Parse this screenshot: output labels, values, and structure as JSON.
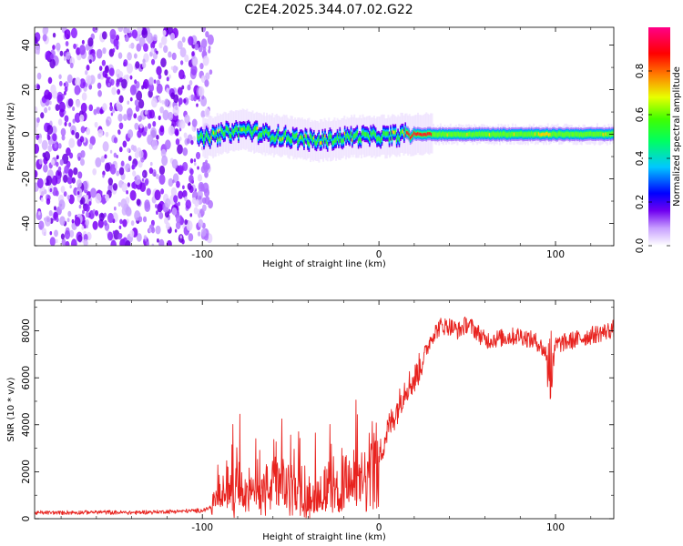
{
  "figure_title": "C2E4.2025.344.07.02.G22",
  "chart_data": [
    {
      "type": "heatmap",
      "title": "",
      "xlabel": "Height of straight line (km)",
      "ylabel": "Frequency (Hz)",
      "xlim": [
        -195,
        133
      ],
      "ylim": [
        -50,
        48
      ],
      "xticks": [
        -100,
        0,
        100
      ],
      "xtick_labels": [
        "-100",
        "0",
        "100"
      ],
      "yticks": [
        -40,
        -20,
        0,
        20,
        40
      ],
      "ytick_labels": [
        "-40",
        "-20",
        "0",
        "20",
        "40"
      ],
      "noise_region_km": [
        -195,
        -98
      ],
      "ridge": {
        "description": "tracked signal near 0 Hz",
        "x_km": [
          -105,
          -95,
          -85,
          -75,
          -65,
          -55,
          -45,
          -35,
          -25,
          -15,
          -5,
          5,
          15,
          25,
          50,
          75,
          95,
          133
        ],
        "freq_hz": [
          -3,
          -1,
          1,
          2,
          0,
          -1,
          -2,
          -3,
          -2,
          -1,
          -1,
          -1,
          0,
          0,
          0,
          0,
          0,
          0
        ]
      },
      "colorbar": {
        "label": "Normalized spectral amplitude",
        "range": [
          0,
          1
        ],
        "ticks": [
          0.0,
          0.2,
          0.4,
          0.6,
          0.8
        ],
        "tick_labels": [
          "0.0",
          "0.2",
          "0.4",
          "0.6",
          "0.8"
        ]
      }
    },
    {
      "type": "line",
      "title": "",
      "xlabel": "Height of straight line (km)",
      "ylabel": "SNR (10 * v/v)",
      "xlim": [
        -195,
        133
      ],
      "ylim": [
        0,
        9300
      ],
      "xticks": [
        -100,
        0,
        100
      ],
      "xtick_labels": [
        "-100",
        "0",
        "100"
      ],
      "yticks": [
        0,
        2000,
        4000,
        6000,
        8000
      ],
      "ytick_labels": [
        "0",
        "2000",
        "4000",
        "6000",
        "8000"
      ],
      "series": [
        {
          "name": "SNR",
          "color": "#e8231f",
          "x": [
            -195,
            -180,
            -160,
            -140,
            -120,
            -100,
            -95,
            -90,
            -80,
            -70,
            -60,
            -50,
            -40,
            -30,
            -25,
            -20,
            -15,
            -10,
            -5,
            0,
            5,
            10,
            15,
            20,
            25,
            30,
            35,
            40,
            45,
            50,
            55,
            60,
            70,
            80,
            90,
            95,
            97,
            100,
            110,
            120,
            130,
            133
          ],
          "y": [
            250,
            260,
            280,
            260,
            300,
            350,
            500,
            1000,
            1300,
            1000,
            1500,
            1200,
            900,
            1300,
            1000,
            1600,
            1500,
            1400,
            1900,
            2600,
            3800,
            4600,
            5600,
            5900,
            6800,
            7800,
            8200,
            8200,
            8000,
            8300,
            8000,
            7600,
            7700,
            7800,
            7500,
            7000,
            5200,
            7400,
            7600,
            7800,
            8000,
            8100
          ]
        }
      ]
    }
  ]
}
